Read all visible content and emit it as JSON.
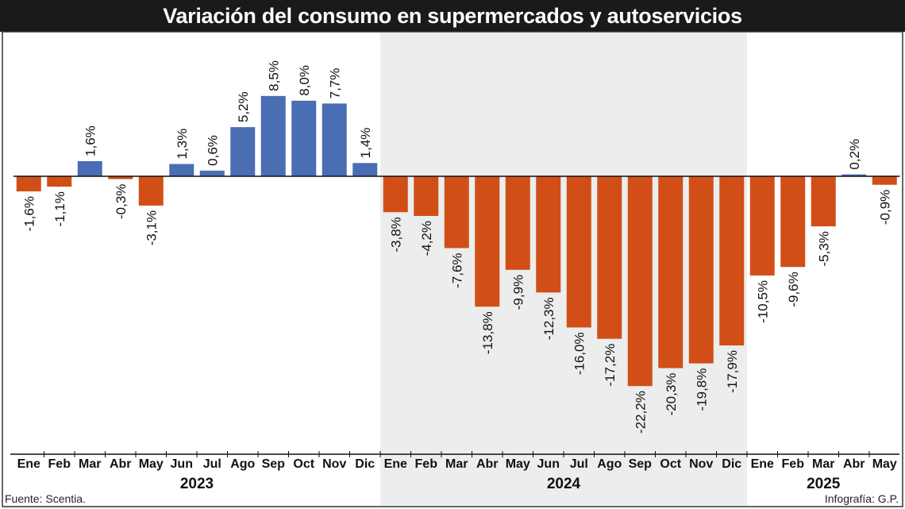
{
  "title": "Variación del consumo en supermercados y autoservicios",
  "footer": {
    "source": "Fuente: Scentia.",
    "credit": "Infografía: G.P."
  },
  "colors": {
    "positive": "#4a6db3",
    "negative": "#d14f16",
    "highlight_band": "#eceeed",
    "title_bg": "#1a1a1a"
  },
  "chart_data": {
    "type": "bar",
    "title": "Variación del consumo en supermercados y autoservicios",
    "xlabel": "",
    "ylabel": "",
    "categories": [
      "Ene",
      "Feb",
      "Mar",
      "Abr",
      "May",
      "Jun",
      "Jul",
      "Ago",
      "Sep",
      "Oct",
      "Nov",
      "Dic",
      "Ene",
      "Feb",
      "Mar",
      "Abr",
      "May",
      "Jun",
      "Jul",
      "Ago",
      "Sep",
      "Oct",
      "Nov",
      "Dic",
      "Ene",
      "Feb",
      "Mar",
      "Abr",
      "May"
    ],
    "years": [
      {
        "label": "2023",
        "months": 12
      },
      {
        "label": "2024",
        "months": 12,
        "shaded": true
      },
      {
        "label": "2025",
        "months": 5
      }
    ],
    "values": [
      -1.6,
      -1.1,
      1.6,
      -0.3,
      -3.1,
      1.3,
      0.6,
      5.2,
      8.5,
      8.0,
      7.7,
      1.4,
      -3.8,
      -4.2,
      -7.6,
      -13.8,
      -9.9,
      -12.3,
      -16.0,
      -17.2,
      -22.2,
      -20.3,
      -19.8,
      -17.9,
      -10.5,
      -9.6,
      -5.3,
      0.2,
      -0.9
    ],
    "data_labels": [
      "-1,6%",
      "-1,1%",
      "1,6%",
      "-0,3%",
      "-3,1%",
      "1,3%",
      "0,6%",
      "5,2%",
      "8,5%",
      "8,0%",
      "7,7%",
      "1,4%",
      "-3,8%",
      "-4,2%",
      "-7,6%",
      "-13,8%",
      "-9,9%",
      "-12,3%",
      "-16,0%",
      "-17,2%",
      "-22,2%",
      "-20,3%",
      "-19,8%",
      "-17,9%",
      "-10,5%",
      "-9,6%",
      "-5,3%",
      "0,2%",
      "-0,9%"
    ],
    "unit": "%",
    "grid": false
  }
}
